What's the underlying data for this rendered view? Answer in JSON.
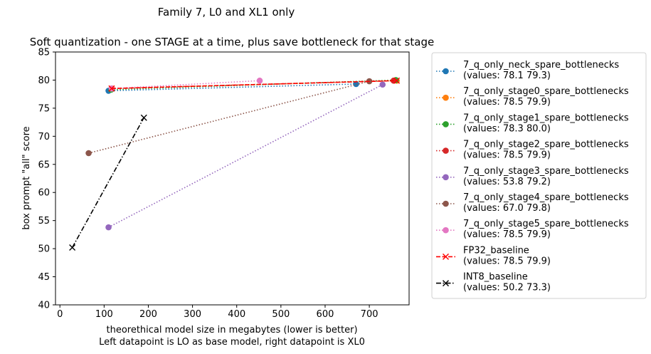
{
  "chart_data": {
    "type": "line",
    "suptitle": "Family 7, L0 and XL1 only",
    "title": "Soft quantization - one STAGE at a time, plus save bottleneck for that stage",
    "xlabel_line1": "theorethical model size in megabytes (lower is better)",
    "xlabel_line2": "Left datapoint is LO as base model, right datapoint is XL0",
    "ylabel": "box prompt \"all\" score",
    "xlim": [
      -10,
      790
    ],
    "ylim": [
      40,
      85
    ],
    "xticks": [
      0,
      100,
      200,
      300,
      400,
      500,
      600,
      700
    ],
    "yticks": [
      40,
      45,
      50,
      55,
      60,
      65,
      70,
      75,
      80,
      85
    ],
    "grid": false,
    "legend_position": "outside-right",
    "series": [
      {
        "name": "7_q_only_neck_spare_bottlenecks",
        "values_label": "(values: 78.1 79.3)",
        "x": [
          110,
          670
        ],
        "y": [
          78.1,
          79.3
        ],
        "color": "#1f77b4",
        "style": "dotted",
        "marker": "circle"
      },
      {
        "name": "7_q_only_stage0_spare_bottlenecks",
        "values_label": "(values: 78.5 79.9)",
        "x": [
          118,
          762
        ],
        "y": [
          78.5,
          79.9
        ],
        "color": "#ff7f0e",
        "style": "dotted",
        "marker": "circle"
      },
      {
        "name": "7_q_only_stage1_spare_bottlenecks",
        "values_label": "(values: 78.3 80.0)",
        "x": [
          116,
          760
        ],
        "y": [
          78.3,
          80.0
        ],
        "color": "#2ca02c",
        "style": "dotted",
        "marker": "circle"
      },
      {
        "name": "7_q_only_stage2_spare_bottlenecks",
        "values_label": "(values: 78.5 79.9)",
        "x": [
          117,
          755
        ],
        "y": [
          78.5,
          79.9
        ],
        "color": "#d62728",
        "style": "dotted",
        "marker": "circle"
      },
      {
        "name": "7_q_only_stage3_spare_bottlenecks",
        "values_label": "(values: 53.8 79.2)",
        "x": [
          110,
          730
        ],
        "y": [
          53.8,
          79.2
        ],
        "color": "#9467bd",
        "style": "dotted",
        "marker": "circle"
      },
      {
        "name": "7_q_only_stage4_spare_bottlenecks",
        "values_label": "(values: 67.0 79.8)",
        "x": [
          65,
          700
        ],
        "y": [
          67.0,
          79.8
        ],
        "color": "#8c564b",
        "style": "dotted",
        "marker": "circle"
      },
      {
        "name": "7_q_only_stage5_spare_bottlenecks",
        "values_label": "(values: 78.5 79.9)",
        "x": [
          117,
          452
        ],
        "y": [
          78.5,
          79.9
        ],
        "color": "#e377c2",
        "style": "dotted",
        "marker": "circle"
      },
      {
        "name": "FP32_baseline",
        "values_label": "(values: 78.5 79.9)",
        "x": [
          117,
          762
        ],
        "y": [
          78.5,
          79.9
        ],
        "color": "#ff0000",
        "style": "dashed",
        "marker": "x"
      },
      {
        "name": "INT8_baseline",
        "values_label": "(values: 50.2 73.3)",
        "x": [
          28,
          190
        ],
        "y": [
          50.2,
          73.3
        ],
        "color": "#000000",
        "style": "dashdot",
        "marker": "x"
      }
    ]
  }
}
